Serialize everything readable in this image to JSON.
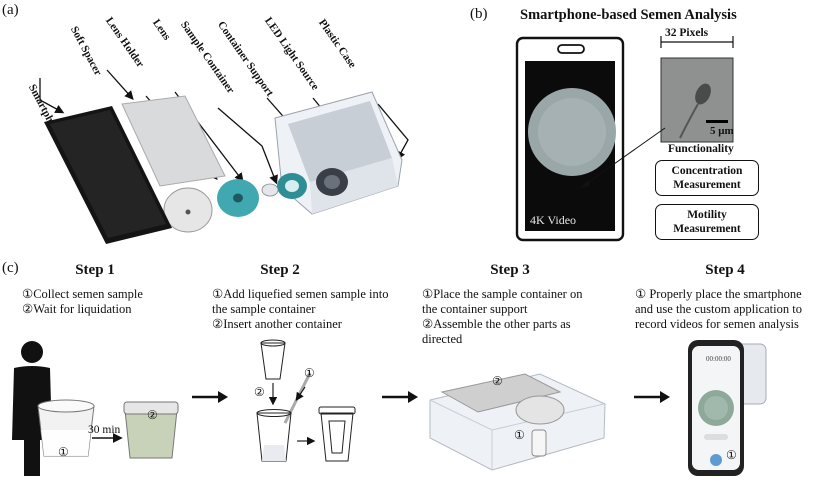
{
  "panel_a": {
    "label": "(a)",
    "parts": [
      "Smartphone",
      "Soft Spacer",
      "Lens Holder",
      "Lens",
      "Sample Container",
      "Container Support",
      "LED Light Source",
      "Plastic Case"
    ]
  },
  "panel_b": {
    "label": "(b)",
    "title": "Smartphone-based Semen Analysis",
    "pixels_label": "32 Pixels",
    "scale_label": "5 μm",
    "video_label": "4K Video",
    "functionality_label": "Functionality",
    "box1": "Concentration Measurement",
    "box2": "Motility Measurement"
  },
  "panel_c": {
    "label": "(c)",
    "step1": {
      "title": "Step 1",
      "lines": [
        "①Collect semen sample",
        "②Wait for liquidation"
      ],
      "time_label": "30 min"
    },
    "step2": {
      "title": "Step 2",
      "lines": [
        "①Add liquefied semen sample into",
        "the sample container",
        "②Insert another container"
      ]
    },
    "step3": {
      "title": "Step 3",
      "lines": [
        "①Place the sample container on",
        "the container support",
        "②Assemble the other parts as",
        "directed"
      ]
    },
    "step4": {
      "title": "Step 4",
      "lines": [
        "① Properly place the smartphone",
        "and use the custom application to",
        "record videos for semen analysis"
      ],
      "app_time": "00:00:00"
    },
    "markers": {
      "one": "①",
      "two": "②"
    }
  },
  "colors": {
    "teal": "#3fa8b0",
    "dark": "#1a1a1a",
    "case": "#e8ecf1",
    "led": "#3a3f47",
    "liquid": "#dde4c9"
  }
}
